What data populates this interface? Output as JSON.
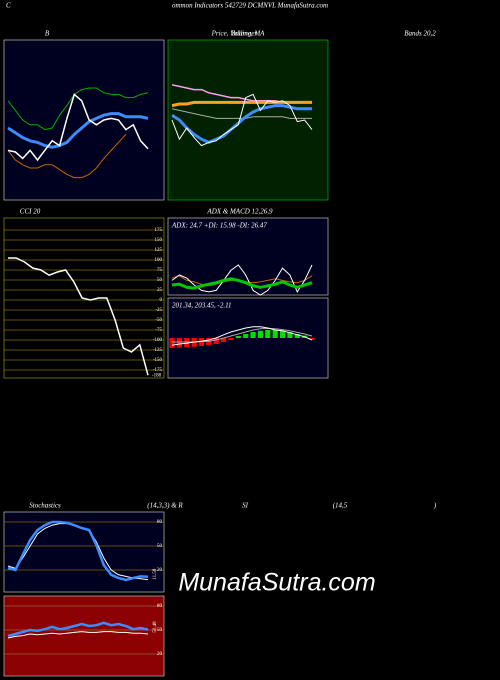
{
  "header": {
    "prefix": "C",
    "title": "ommon Indicators 542729 DCMNVL MunafaSutra.com",
    "bands": "Bands 20,2",
    "overlay": "Bollinger",
    "stoch_rsi_heading": [
      "Stochastics",
      "(14,3,3) & R",
      "SI",
      "(14,5",
      ")"
    ]
  },
  "watermark": "MunafaSutra.com",
  "chart_data": [
    {
      "type": "line",
      "title": "B",
      "background": "#000020",
      "border": "#aaaaaa",
      "ylim": [
        0,
        100
      ],
      "series": [
        {
          "color": "#00b000",
          "values": [
            62,
            56,
            50,
            47,
            47,
            44,
            45,
            53,
            59,
            66,
            69,
            70,
            70,
            67,
            66,
            66,
            64,
            64,
            66,
            67
          ]
        },
        {
          "color": "#c86400",
          "values": [
            31,
            25,
            22,
            20,
            20,
            22,
            22,
            19,
            16,
            14,
            14,
            16,
            20,
            26,
            31,
            36,
            41,
            null,
            null,
            null
          ]
        },
        {
          "color": "#3c8cff",
          "width": 3,
          "values": [
            45,
            42,
            39,
            37,
            36,
            34,
            33,
            34,
            36,
            41,
            45,
            49,
            51,
            53,
            54,
            54,
            52,
            52,
            52,
            51
          ]
        },
        {
          "color": "#ffffff",
          "width": 1.5,
          "values": [
            31,
            30,
            26,
            31,
            25,
            31,
            37,
            34,
            51,
            66,
            62,
            50,
            47,
            50,
            51,
            50,
            44,
            47,
            37,
            32
          ]
        }
      ]
    },
    {
      "type": "line",
      "title": "Price, Volume, MA",
      "background": "#002200",
      "border": "#00a000",
      "ylim": [
        0,
        100
      ],
      "series": [
        {
          "color": "#ff9cf0",
          "width": 1.5,
          "values": [
            72,
            71,
            70,
            69,
            69,
            67,
            66,
            65,
            64,
            64,
            63,
            62,
            62,
            62,
            62,
            61,
            61,
            61,
            61,
            61
          ]
        },
        {
          "color": "#ffa020",
          "width": 3,
          "values": [
            59,
            60,
            60,
            61,
            61,
            61,
            61,
            61,
            61,
            61,
            61,
            61,
            61,
            61,
            61,
            61,
            61,
            61,
            61,
            61
          ]
        },
        {
          "color": "#aaaaaa",
          "values": [
            57,
            56,
            55,
            54,
            53,
            52,
            51,
            51,
            51,
            51,
            51,
            52,
            52,
            52,
            52,
            52,
            51,
            51,
            51,
            51
          ]
        },
        {
          "color": "#3c8cff",
          "width": 3,
          "values": [
            53,
            50,
            45,
            41,
            38,
            36,
            38,
            40,
            44,
            48,
            52,
            55,
            57,
            58,
            59,
            59,
            58,
            57,
            57,
            57
          ]
        },
        {
          "color": "#ffffff",
          "values": [
            50,
            38,
            45,
            39,
            34,
            36,
            37,
            41,
            44,
            47,
            64,
            66,
            56,
            62,
            61,
            62,
            59,
            49,
            50,
            44
          ]
        }
      ]
    },
    {
      "type": "line",
      "title": "CCI 20",
      "background": "#000000",
      "border": "#808000",
      "grid_color": "#806a00",
      "grid": true,
      "ylim": [
        -195,
        205
      ],
      "yticks": [
        -175,
        -150,
        -125,
        -100,
        -75,
        -50,
        -25,
        0,
        25,
        50,
        75,
        100,
        125,
        150,
        175
      ],
      "series": [
        {
          "color": "#ffffff",
          "width": 1.5,
          "end_label": true,
          "values": [
            105,
            105,
            95,
            80,
            75,
            62,
            70,
            75,
            45,
            5,
            0,
            5,
            5,
            -50,
            -120,
            -130,
            -112,
            -188
          ]
        }
      ]
    },
    {
      "type": "line",
      "title": "ADX  & MACD 12,26,9",
      "subtitle": "ADX: 24.7 +DI: 15.98 -DI: 26.47",
      "background": "#000020",
      "border": "#aaaaaa",
      "ylim": [
        0,
        100
      ],
      "series": [
        {
          "color": "#c86400",
          "values": [
            22,
            25,
            19,
            17,
            14,
            12,
            14,
            17,
            19,
            19,
            17,
            16,
            17,
            19,
            21,
            19,
            17,
            16,
            19,
            25
          ]
        },
        {
          "color": "#ffffff",
          "values": [
            19,
            26,
            22,
            13,
            6,
            4,
            6,
            19,
            32,
            39,
            26,
            6,
            0,
            6,
            19,
            35,
            26,
            4,
            19,
            39
          ]
        },
        {
          "color": "#00c800",
          "width": 3,
          "values": [
            13,
            14,
            10,
            9,
            12,
            14,
            16,
            19,
            21,
            19,
            16,
            12,
            10,
            12,
            14,
            17,
            13,
            10,
            13,
            16
          ]
        }
      ]
    },
    {
      "type": "line",
      "subtitle": "201.34, 203.45, -2.11",
      "background": "#000020",
      "border": "#aaaaaa",
      "ylim": [
        -10,
        10
      ],
      "series": [
        {
          "color": "#ff0000",
          "kind": "bar",
          "values": [
            -2.5,
            -2.4,
            -2.3,
            -2.2,
            -2,
            -1.8,
            -1.5,
            -1,
            -0.5,
            null,
            null,
            null,
            null,
            null,
            null,
            null,
            null,
            null,
            null,
            -0.5
          ]
        },
        {
          "color": "#00e000",
          "kind": "bar",
          "values": [
            null,
            null,
            null,
            null,
            null,
            null,
            null,
            null,
            null,
            0.5,
            1,
            1.5,
            1.8,
            2,
            2,
            1.8,
            1.5,
            1,
            0.6,
            null
          ]
        },
        {
          "color": "#aaaaaa",
          "values": [
            -1,
            -1,
            -1,
            -1,
            -0.9,
            -0.8,
            -0.5,
            0,
            0.5,
            1,
            1.5,
            2,
            2.3,
            2.4,
            2.3,
            2.1,
            1.8,
            1.4,
            1,
            0.5
          ]
        },
        {
          "color": "#ffffff",
          "values": [
            -1.8,
            -1.5,
            -1.3,
            -1,
            -0.8,
            -0.5,
            0,
            0.8,
            1.5,
            2,
            2.5,
            2.8,
            2.8,
            2.5,
            2,
            1.8,
            1.3,
            0.8,
            0.3,
            -0.5
          ]
        }
      ]
    },
    {
      "type": "line",
      "background": "#000020",
      "border": "#aaaaaa",
      "grid_color": "#806a00",
      "grid": true,
      "ylim": [
        -7.5,
        92.5
      ],
      "yticks": [
        20,
        50,
        80
      ],
      "series": [
        {
          "color": "#ffffff",
          "values": [
            25,
            22,
            35,
            50,
            65,
            72,
            76,
            78,
            78,
            76,
            73,
            70,
            55,
            35,
            20,
            14,
            12,
            10,
            9,
            8
          ]
        },
        {
          "color": "#3c8cff",
          "width": 2.5,
          "end_label": true,
          "values": [
            22.5,
            20,
            39,
            57.5,
            70,
            76,
            80,
            80,
            79,
            76,
            72.5,
            70,
            51,
            26,
            14,
            10,
            7.5,
            10,
            12,
            11.58
          ]
        }
      ]
    },
    {
      "type": "line",
      "background": "#8b0000",
      "border": "#aaaaaa",
      "grid_color": "#a06040",
      "grid": true,
      "ylim": [
        -7.5,
        92.5
      ],
      "yticks": [
        20,
        50,
        80
      ],
      "series": [
        {
          "color": "#ffffff",
          "values": [
            40,
            42,
            43,
            45,
            44,
            45,
            46,
            45,
            46,
            47,
            48,
            47,
            47,
            48,
            48,
            47,
            47,
            46,
            46,
            45
          ]
        },
        {
          "color": "#3c8cff",
          "width": 2.5,
          "end_label": true,
          "values": [
            42.5,
            45,
            47.5,
            50,
            49,
            51,
            54,
            51,
            52.5,
            55,
            57.5,
            55,
            56,
            59,
            56,
            57.5,
            55,
            51,
            52.5,
            50.48
          ]
        }
      ]
    }
  ]
}
